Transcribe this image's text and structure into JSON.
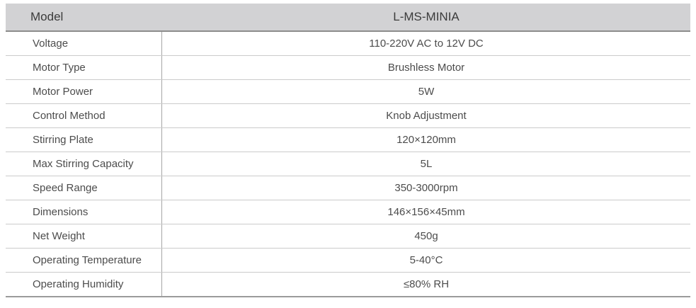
{
  "table": {
    "header": {
      "label": "Model",
      "value": "L-MS-MINIA"
    },
    "rows": [
      {
        "label": "Voltage",
        "value": "110-220V AC to 12V DC"
      },
      {
        "label": "Motor Type",
        "value": "Brushless Motor"
      },
      {
        "label": "Motor Power",
        "value": "5W"
      },
      {
        "label": "Control Method",
        "value": "Knob Adjustment"
      },
      {
        "label": "Stirring Plate",
        "value": "120×120mm"
      },
      {
        "label": "Max Stirring Capacity",
        "value": "5L"
      },
      {
        "label": "Speed Range",
        "value": "350-3000rpm"
      },
      {
        "label": "Dimensions",
        "value": "146×156×45mm"
      },
      {
        "label": "Net Weight",
        "value": "450g"
      },
      {
        "label": "Operating Temperature",
        "value": "5-40°C"
      },
      {
        "label": "Operating Humidity",
        "value": "≤80% RH"
      }
    ],
    "colors": {
      "header_background": "#d2d2d4",
      "header_border": "#8d8d8d",
      "row_separator": "#cbcbcb",
      "column_divider": "#a5a5a5",
      "table_bottom_border": "#9b9b9b",
      "text": "#4c4c4c"
    }
  }
}
